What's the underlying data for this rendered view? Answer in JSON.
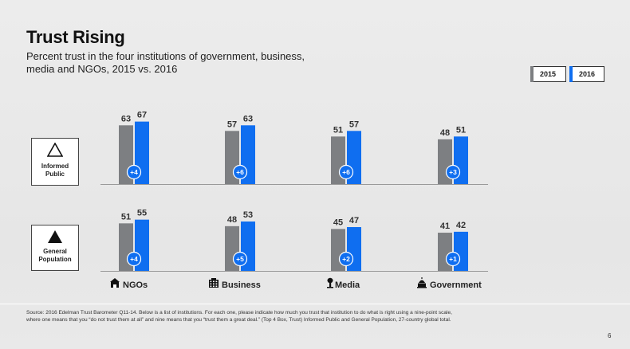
{
  "slide": {
    "title": "Trust Rising",
    "subtitle": "Percent trust in the four institutions of government, business, media and NGOs, 2015 vs. 2016",
    "source": "Source: 2016 Edelman Trust Barometer Q11-14. Below is a list of institutions. For each one, please indicate how much you trust that institution to do what is right using a nine-point scale, where one means that you “do not trust them at all” and nine means that you “trust them a great deal.” (Top 4 Box, Trust) Informed Public and General Population, 27-country global total.",
    "page_number": "6"
  },
  "legend": {
    "y2015": "2015",
    "y2016": "2016"
  },
  "segments": {
    "informed": {
      "line1": "Informed",
      "line2": "Public",
      "icon": "triangle-outline-icon"
    },
    "general": {
      "line1": "General",
      "line2": "Population",
      "icon": "triangle-filled-icon"
    }
  },
  "colors": {
    "bar_2015": "#7d7f82",
    "bar_2016": "#0f6ef0",
    "text": "#222222"
  },
  "chart_data": {
    "type": "bar",
    "title": "Trust Rising",
    "categories": [
      "NGOs",
      "Business",
      "Media",
      "Government"
    ],
    "category_icons": [
      "ngo-building-icon",
      "business-building-icon",
      "media-microphone-icon",
      "government-capitol-icon"
    ],
    "ylim": [
      0,
      100
    ],
    "panels": [
      {
        "name": "Informed Public",
        "series": [
          {
            "name": "2015",
            "values": [
              63,
              57,
              51,
              48
            ]
          },
          {
            "name": "2016",
            "values": [
              67,
              63,
              57,
              51
            ]
          }
        ],
        "changes": [
          "+4",
          "+6",
          "+6",
          "+3"
        ]
      },
      {
        "name": "General Population",
        "series": [
          {
            "name": "2015",
            "values": [
              51,
              48,
              45,
              41
            ]
          },
          {
            "name": "2016",
            "values": [
              55,
              53,
              47,
              42
            ]
          }
        ],
        "changes": [
          "+4",
          "+5",
          "+2",
          "+1"
        ]
      }
    ]
  }
}
